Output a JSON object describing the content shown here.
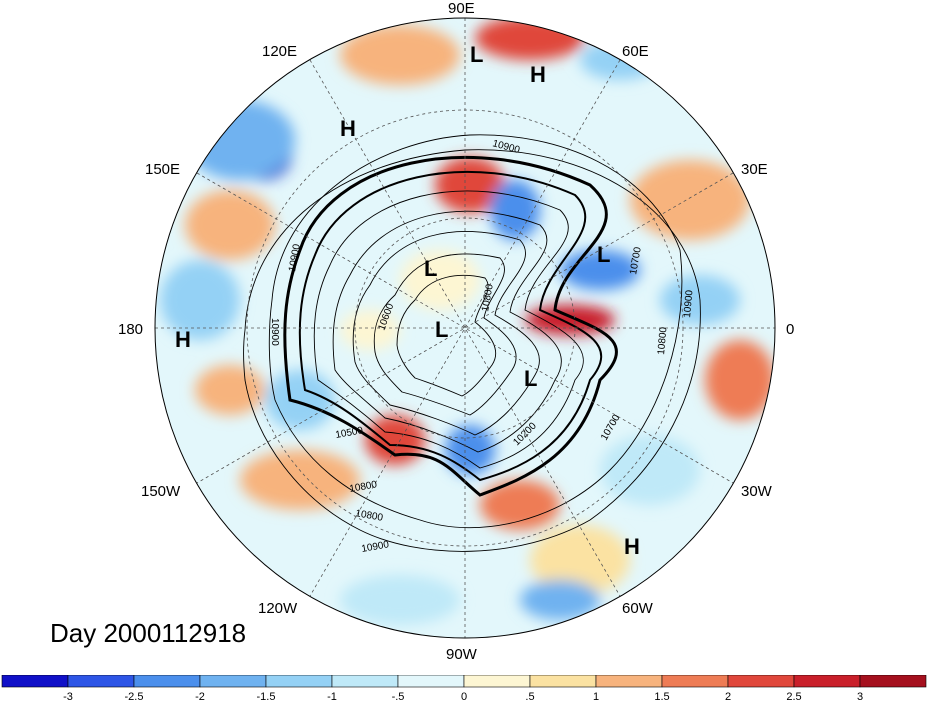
{
  "longitude_labels": [
    "90E",
    "60E",
    "30E",
    "0",
    "30W",
    "60W",
    "90W",
    "120W",
    "150W",
    "180",
    "150E",
    "120E"
  ],
  "pressure_centers": [
    {
      "type": "L",
      "lon": "~90E"
    },
    {
      "type": "H",
      "lon": "~70E"
    },
    {
      "type": "H",
      "lon": "~115E"
    },
    {
      "type": "L",
      "lon": "~45E"
    },
    {
      "type": "L",
      "lon": "~120E"
    },
    {
      "type": "L",
      "lon": "~180"
    },
    {
      "type": "L",
      "lon": "~30W"
    },
    {
      "type": "H",
      "lon": "~60W"
    },
    {
      "type": "H",
      "lon": "180"
    }
  ],
  "contour_labels": [
    "10900",
    "10900",
    "10700",
    "10900",
    "10800",
    "10700",
    "10600",
    "10500",
    "10800",
    "10800",
    "10900",
    "10200",
    "10900",
    "10800"
  ],
  "date_text": "Day 2000112918",
  "colorbar": {
    "tick_labels": [
      "-3",
      "-2.5",
      "-2",
      "-1.5",
      "-1",
      "-.5",
      "0",
      ".5",
      "1",
      "1.5",
      "2",
      "2.5",
      "3"
    ],
    "colors": [
      "#1010c8",
      "#2d55e6",
      "#4b8fec",
      "#6fb2f0",
      "#94d1f5",
      "#bfe9f8",
      "#e3f7fb",
      "#fdf6d3",
      "#fbe2a2",
      "#f7b37d",
      "#ee7c55",
      "#e0473b",
      "#c91f2a",
      "#a5101e"
    ]
  }
}
